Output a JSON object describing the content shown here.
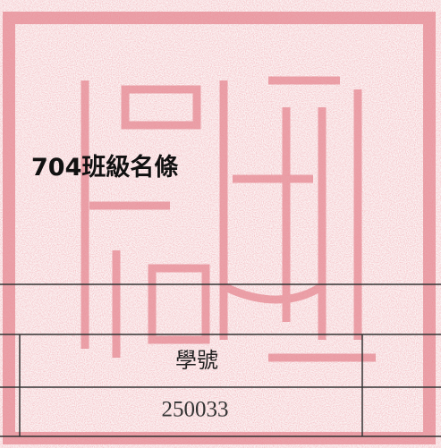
{
  "document": {
    "title": "704班級名條",
    "table": {
      "rows": [
        [
          "學號"
        ],
        [
          "250033"
        ]
      ]
    }
  }
}
